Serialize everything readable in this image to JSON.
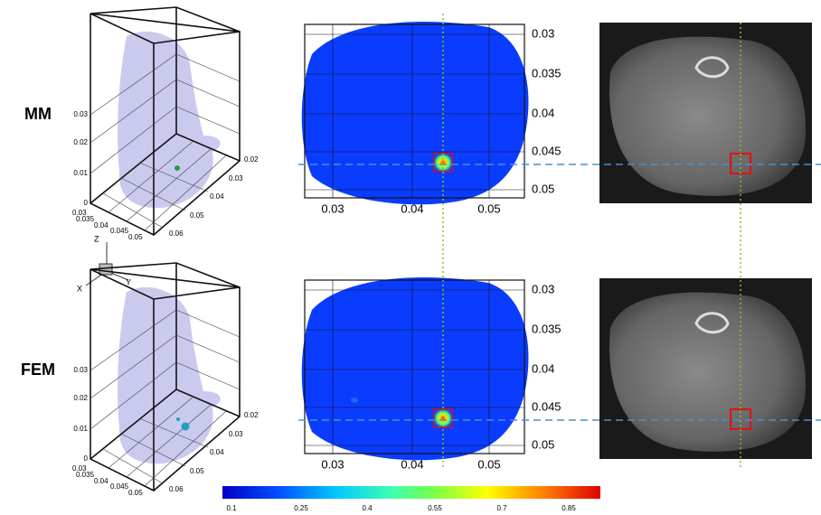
{
  "rows": [
    {
      "label": "MM"
    },
    {
      "label": "FEM"
    }
  ],
  "plot3d": {
    "z_ticks": [
      "0",
      "0.01",
      "0.02",
      "0.03"
    ],
    "x_ticks": [
      "0.03",
      "0.035",
      "0.04",
      "0.045",
      "0.05"
    ],
    "y_ticks": [
      "0.02",
      "0.03",
      "0.04",
      "0.05",
      "0.06"
    ]
  },
  "axes_triad": {
    "labels": [
      "Z",
      "X",
      "Y"
    ]
  },
  "plot2d": {
    "x_ticks": [
      "0.03",
      "0.04",
      "0.05"
    ],
    "y_ticks": [
      "0.03",
      "0.035",
      "0.04",
      "0.045",
      "0.05"
    ]
  },
  "colorbar": {
    "ticks": [
      "0.1",
      "0.25",
      "0.4",
      "0.55",
      "0.7",
      "0.85"
    ]
  }
}
